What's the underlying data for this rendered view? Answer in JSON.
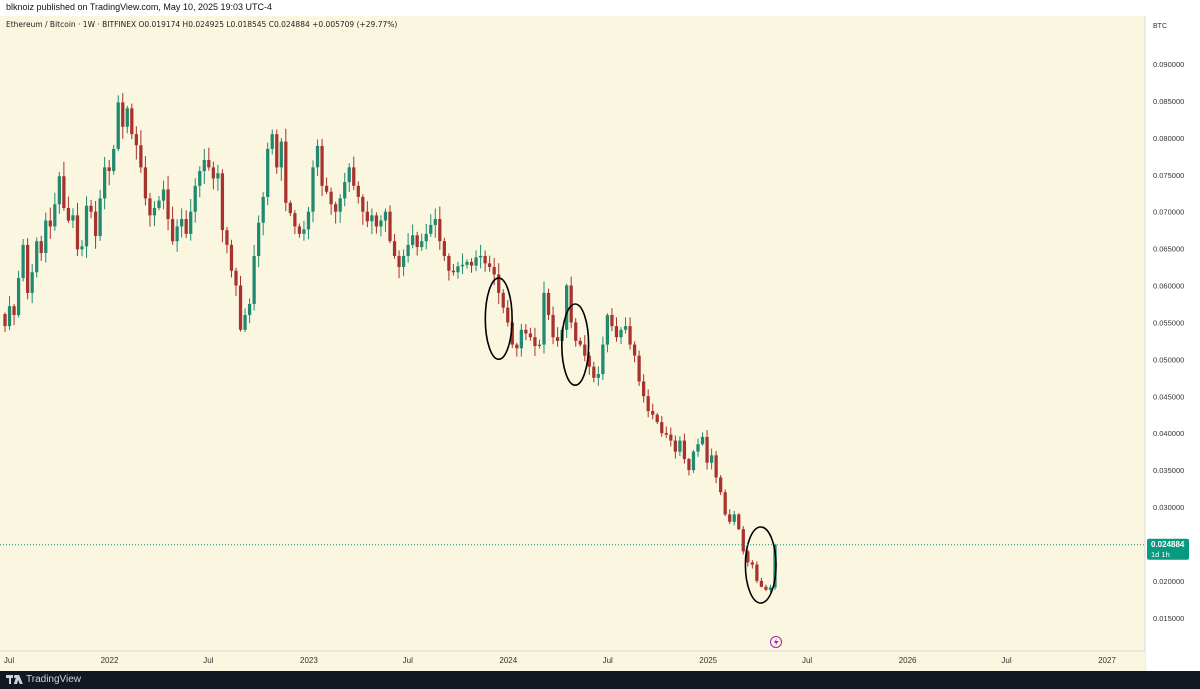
{
  "header": {
    "attribution": "blknoiz published on TradingView.com, May 10, 2025 19:03 UTC-4"
  },
  "footer": {
    "brand": "TradingView"
  },
  "chart_data": {
    "type": "candlestick",
    "legend_text": "Ethereum / Bitcoin · 1W · BITFINEX  O0.019174  H0.024925  L0.018545  C0.024884  +0.005709 (+29.77%)",
    "currency": "BTC",
    "ylim": [
      0.0105,
      0.0965
    ],
    "y_ticks": [
      "0.015000",
      "0.020000",
      "0.025000",
      "0.030000",
      "0.035000",
      "0.040000",
      "0.045000",
      "0.050000",
      "0.055000",
      "0.060000",
      "0.065000",
      "0.070000",
      "0.075000",
      "0.080000",
      "0.085000",
      "0.090000"
    ],
    "x_ticks": [
      {
        "label": "Jul",
        "date": "2021-07-01"
      },
      {
        "label": "2022",
        "date": "2022-01-01"
      },
      {
        "label": "Jul",
        "date": "2022-07-01"
      },
      {
        "label": "2023",
        "date": "2023-01-01"
      },
      {
        "label": "Jul",
        "date": "2023-07-01"
      },
      {
        "label": "2024",
        "date": "2024-01-01"
      },
      {
        "label": "Jul",
        "date": "2024-07-01"
      },
      {
        "label": "2025",
        "date": "2025-01-01"
      },
      {
        "label": "Jul",
        "date": "2025-07-01"
      },
      {
        "label": "2026",
        "date": "2026-01-01"
      },
      {
        "label": "Jul",
        "date": "2026-07-01"
      },
      {
        "label": "2027",
        "date": "2027-01-01"
      }
    ],
    "last_price": {
      "value": 0.024884,
      "label": "0.024884",
      "countdown": "1d 1h"
    },
    "colors": {
      "background": "#faf6e0",
      "up": "#1f8a70",
      "down": "#a8322d",
      "axis_bg": "#ffffff",
      "price_label": "#089981",
      "ink": "#000000"
    },
    "candles": [
      0.0545,
      0.0572,
      0.056,
      0.061,
      0.0655,
      0.059,
      0.0618,
      0.066,
      0.0644,
      0.0688,
      0.068,
      0.071,
      0.0748,
      0.0705,
      0.0688,
      0.0695,
      0.0649,
      0.0653,
      0.0708,
      0.07,
      0.0667,
      0.0718,
      0.076,
      0.0755,
      0.0785,
      0.0848,
      0.0815,
      0.084,
      0.0805,
      0.079,
      0.076,
      0.0718,
      0.0695,
      0.0705,
      0.0715,
      0.073,
      0.069,
      0.066,
      0.068,
      0.069,
      0.067,
      0.07,
      0.0735,
      0.0755,
      0.077,
      0.076,
      0.0745,
      0.0752,
      0.0675,
      0.0655,
      0.062,
      0.06,
      0.054,
      0.056,
      0.0575,
      0.064,
      0.0685,
      0.072,
      0.0785,
      0.0805,
      0.076,
      0.0795,
      0.0712,
      0.0698,
      0.068,
      0.067,
      0.0676,
      0.07,
      0.076,
      0.0789,
      0.0735,
      0.0727,
      0.071,
      0.07,
      0.0718,
      0.074,
      0.076,
      0.0735,
      0.072,
      0.07,
      0.0687,
      0.0695,
      0.068,
      0.0688,
      0.07,
      0.066,
      0.064,
      0.0625,
      0.064,
      0.0655,
      0.0668,
      0.0652,
      0.066,
      0.067,
      0.0682,
      0.069,
      0.066,
      0.064,
      0.062,
      0.0618,
      0.0626,
      0.0628,
      0.0632,
      0.0627,
      0.0638,
      0.064,
      0.063,
      0.0625,
      0.0615,
      0.059,
      0.057,
      0.055,
      0.052,
      0.0515,
      0.054,
      0.0535,
      0.053,
      0.0518,
      0.052,
      0.059,
      0.056,
      0.053,
      0.0525,
      0.054,
      0.06,
      0.055,
      0.0525,
      0.052,
      0.0505,
      0.049,
      0.0475,
      0.048,
      0.052,
      0.056,
      0.0545,
      0.053,
      0.054,
      0.0545,
      0.052,
      0.0505,
      0.047,
      0.045,
      0.043,
      0.0425,
      0.0415,
      0.04,
      0.0398,
      0.039,
      0.0375,
      0.039,
      0.0365,
      0.035,
      0.0375,
      0.0385,
      0.0395,
      0.036,
      0.037,
      0.034,
      0.032,
      0.029,
      0.028,
      0.029,
      0.027,
      0.024,
      0.0225,
      0.0222,
      0.02,
      0.0192,
      0.0188,
      0.0191,
      0.0249
    ],
    "annotations": [
      {
        "type": "ellipse",
        "from": "2023-11-20",
        "to": "2024-01-08",
        "ymin": 0.05,
        "ymax": 0.061
      },
      {
        "type": "ellipse",
        "from": "2024-04-08",
        "to": "2024-05-27",
        "ymin": 0.0465,
        "ymax": 0.0575
      },
      {
        "type": "ellipse",
        "from": "2025-03-10",
        "to": "2025-05-05",
        "ymin": 0.017,
        "ymax": 0.0273
      }
    ]
  }
}
